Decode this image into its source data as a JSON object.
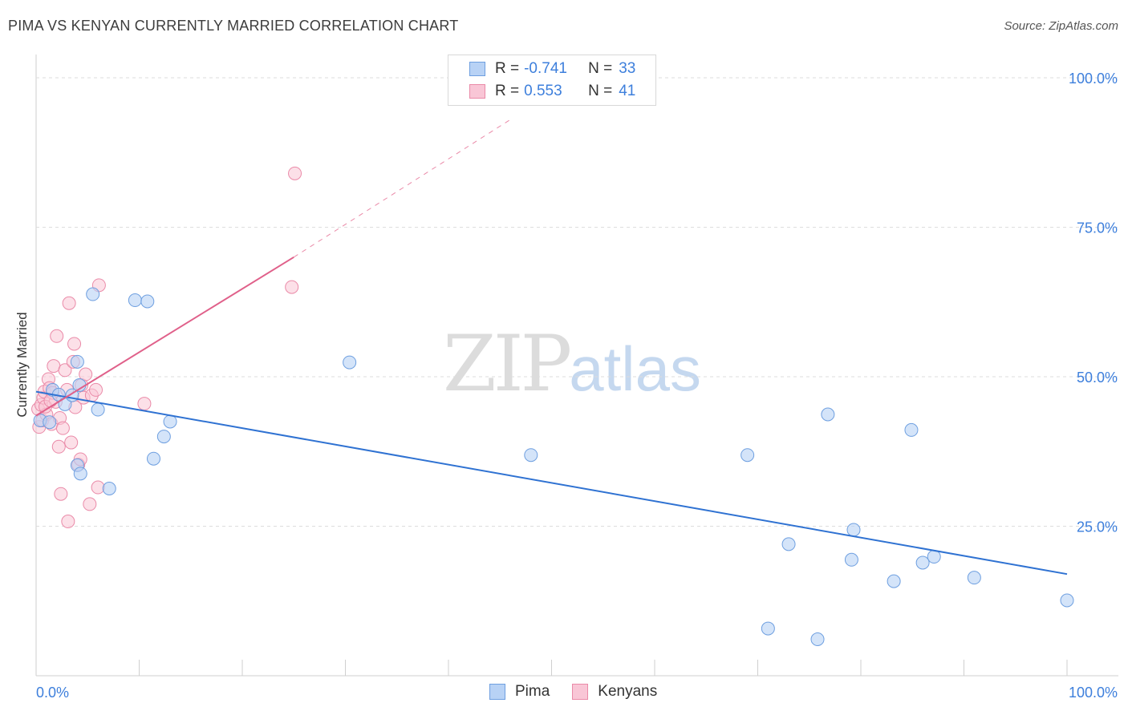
{
  "title": "PIMA VS KENYAN CURRENTLY MARRIED CORRELATION CHART",
  "source": "Source: ZipAtlas.com",
  "watermark": {
    "zip": "ZIP",
    "atlas": "atlas"
  },
  "legend": {
    "rows": [
      {
        "r_label": "R =",
        "r_value": "-0.741",
        "n_label": "N =",
        "n_value": "33"
      },
      {
        "r_label": "R =",
        "r_value": "0.553",
        "n_label": "N =",
        "n_value": "41"
      }
    ]
  },
  "colors": {
    "pima_fill": "#b8d2f5",
    "pima_stroke": "#6e9fe0",
    "pima_line": "#2f72d2",
    "kenyan_fill": "#f9c6d6",
    "kenyan_stroke": "#ea8aa8",
    "kenyan_line": "#e0608a",
    "axis_text": "#3d7fdc",
    "grid": "#dddddd"
  },
  "chart_data": {
    "type": "scatter",
    "title": "PIMA VS KENYAN CURRENTLY MARRIED CORRELATION CHART",
    "xlabel": "",
    "ylabel": "Currently Married",
    "xlim": [
      0,
      100
    ],
    "ylim": [
      0,
      100
    ],
    "x_tick_labels": [
      "0.0%",
      "100.0%"
    ],
    "y_ticks": [
      25,
      50,
      75,
      100
    ],
    "y_tick_labels": [
      "25.0%",
      "50.0%",
      "75.0%",
      "100.0%"
    ],
    "grid": true,
    "legend_position": "bottom",
    "series": [
      {
        "name": "Pima",
        "r": -0.741,
        "n": 33,
        "points": [
          [
            0.4,
            42.7
          ],
          [
            1.3,
            42.4
          ],
          [
            1.6,
            47.8
          ],
          [
            2.2,
            47.0
          ],
          [
            2.8,
            45.4
          ],
          [
            3.5,
            46.9
          ],
          [
            4.0,
            35.2
          ],
          [
            4.0,
            52.5
          ],
          [
            4.2,
            48.6
          ],
          [
            4.3,
            33.8
          ],
          [
            5.5,
            63.8
          ],
          [
            6.0,
            44.5
          ],
          [
            7.1,
            31.3
          ],
          [
            9.6,
            62.8
          ],
          [
            10.8,
            62.6
          ],
          [
            11.4,
            36.3
          ],
          [
            12.4,
            40.0
          ],
          [
            13.0,
            42.5
          ],
          [
            30.4,
            52.4
          ],
          [
            48.0,
            36.9
          ],
          [
            69.0,
            36.9
          ],
          [
            71.0,
            7.9
          ],
          [
            73.0,
            22.0
          ],
          [
            75.8,
            6.1
          ],
          [
            76.8,
            43.7
          ],
          [
            79.1,
            19.4
          ],
          [
            79.3,
            24.4
          ],
          [
            83.2,
            15.8
          ],
          [
            84.9,
            41.1
          ],
          [
            86.0,
            18.9
          ],
          [
            87.1,
            19.9
          ],
          [
            91.0,
            16.4
          ],
          [
            100.0,
            12.6
          ]
        ],
        "trend": {
          "x": [
            0,
            100
          ],
          "y": [
            47.5,
            17.0
          ]
        }
      },
      {
        "name": "Kenyans",
        "r": 0.553,
        "n": 41,
        "points": [
          [
            0.2,
            44.6
          ],
          [
            0.3,
            41.6
          ],
          [
            0.5,
            45.3
          ],
          [
            0.6,
            42.7
          ],
          [
            0.7,
            46.5
          ],
          [
            0.8,
            47.5
          ],
          [
            1.0,
            43.7
          ],
          [
            1.2,
            49.6
          ],
          [
            1.3,
            48.1
          ],
          [
            1.5,
            42.1
          ],
          [
            1.7,
            51.8
          ],
          [
            1.9,
            45.8
          ],
          [
            2.0,
            56.8
          ],
          [
            2.2,
            38.3
          ],
          [
            2.3,
            43.1
          ],
          [
            2.4,
            30.4
          ],
          [
            2.6,
            41.4
          ],
          [
            2.8,
            51.1
          ],
          [
            3.0,
            47.8
          ],
          [
            3.1,
            25.8
          ],
          [
            3.2,
            62.3
          ],
          [
            3.4,
            39.0
          ],
          [
            3.6,
            52.5
          ],
          [
            3.7,
            55.5
          ],
          [
            3.8,
            44.9
          ],
          [
            4.1,
            35.3
          ],
          [
            4.3,
            36.2
          ],
          [
            4.4,
            48.6
          ],
          [
            4.6,
            46.5
          ],
          [
            4.8,
            50.4
          ],
          [
            5.2,
            28.7
          ],
          [
            5.4,
            46.9
          ],
          [
            5.8,
            47.8
          ],
          [
            6.0,
            31.5
          ],
          [
            6.1,
            65.3
          ],
          [
            10.5,
            45.5
          ],
          [
            24.8,
            65.0
          ],
          [
            25.1,
            84.0
          ],
          [
            1.6,
            47.3
          ],
          [
            0.9,
            45.0
          ],
          [
            1.4,
            46.0
          ]
        ],
        "trend": {
          "x": [
            0,
            25
          ],
          "y": [
            43.5,
            70.0
          ]
        },
        "trend_extension": {
          "x": [
            25,
            46
          ],
          "y": [
            70.0,
            93.0
          ]
        }
      }
    ]
  },
  "bottom_legend": [
    {
      "label": "Pima"
    },
    {
      "label": "Kenyans"
    }
  ]
}
